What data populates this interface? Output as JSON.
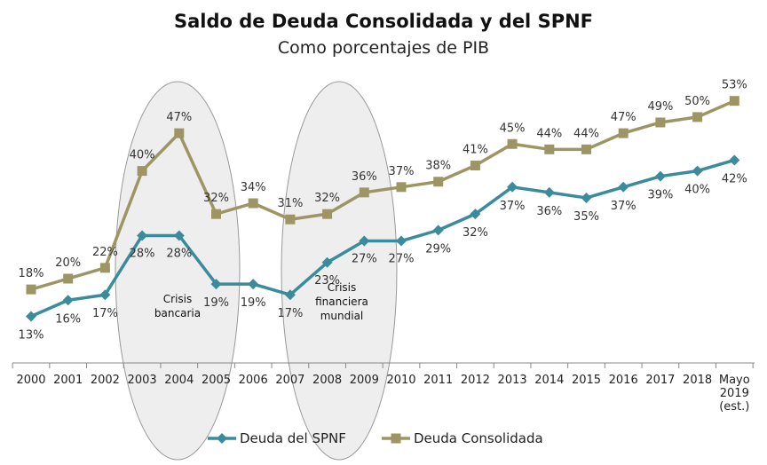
{
  "chart_data": {
    "type": "line",
    "title": "Saldo de Deuda Consolidada y del SPNF",
    "subtitle": "Como porcentajes de PIB",
    "categories": [
      [
        "2000"
      ],
      [
        "2001"
      ],
      [
        "2002"
      ],
      [
        "2003"
      ],
      [
        "2004"
      ],
      [
        "2005"
      ],
      [
        "2006"
      ],
      [
        "2007"
      ],
      [
        "2008"
      ],
      [
        "2009"
      ],
      [
        "2010"
      ],
      [
        "2011"
      ],
      [
        "2012"
      ],
      [
        "2013"
      ],
      [
        "2014"
      ],
      [
        "2015"
      ],
      [
        "2016"
      ],
      [
        "2017"
      ],
      [
        "2018"
      ],
      [
        "Mayo",
        "2019",
        "(est.)"
      ]
    ],
    "series": [
      {
        "name": "Deuda del SPNF",
        "color": "#3a8b9c",
        "marker": "diamond",
        "values": [
          13,
          16,
          17,
          28,
          28,
          19,
          19,
          17,
          23,
          27,
          27,
          29,
          32,
          37,
          36,
          35,
          37,
          39,
          40,
          42
        ],
        "labels": [
          "13%",
          "16%",
          "17%",
          "28%",
          "28%",
          "19%",
          "19%",
          "17%",
          "23%",
          "27%",
          "27%",
          "29%",
          "32%",
          "37%",
          "36%",
          "35%",
          "37%",
          "39%",
          "40%",
          "42%"
        ]
      },
      {
        "name": "Deuda Consolidada",
        "color": "#9e9565",
        "marker": "square",
        "values": [
          18,
          20,
          22,
          40,
          47,
          32,
          34,
          31,
          32,
          36,
          37,
          38,
          41,
          45,
          44,
          44,
          47,
          49,
          50,
          53
        ],
        "labels": [
          "18%",
          "20%",
          "22%",
          "40%",
          "47%",
          "32%",
          "34%",
          "31%",
          "32%",
          "36%",
          "37%",
          "38%",
          "41%",
          "45%",
          "44%",
          "44%",
          "47%",
          "49%",
          "50%",
          "53%"
        ]
      }
    ],
    "annotations": [
      {
        "text": [
          "Crisis",
          "bancaria"
        ]
      },
      {
        "text": [
          "Crisis",
          "financiera",
          "mundial"
        ]
      }
    ],
    "grid": false,
    "legend": "bottom-center"
  }
}
